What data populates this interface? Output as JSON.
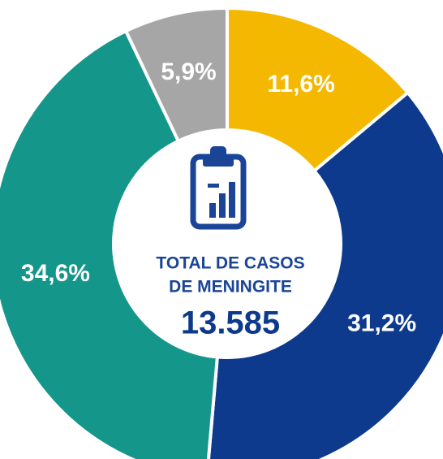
{
  "chart_data": {
    "type": "donut",
    "categories": [
      null,
      null,
      null,
      null
    ],
    "values": [
      11.6,
      31.2,
      34.6,
      5.9
    ],
    "value_labels": [
      "11,6%",
      "31,2%",
      "34,6%",
      "5,9%"
    ],
    "colors": [
      "#f5b800",
      "#0d3a8c",
      "#15968a",
      "#a6a6a6"
    ],
    "center_title_lines": [
      "TOTAL DE CASOS",
      "DE MENINGITE"
    ],
    "center_total": "13.585"
  }
}
